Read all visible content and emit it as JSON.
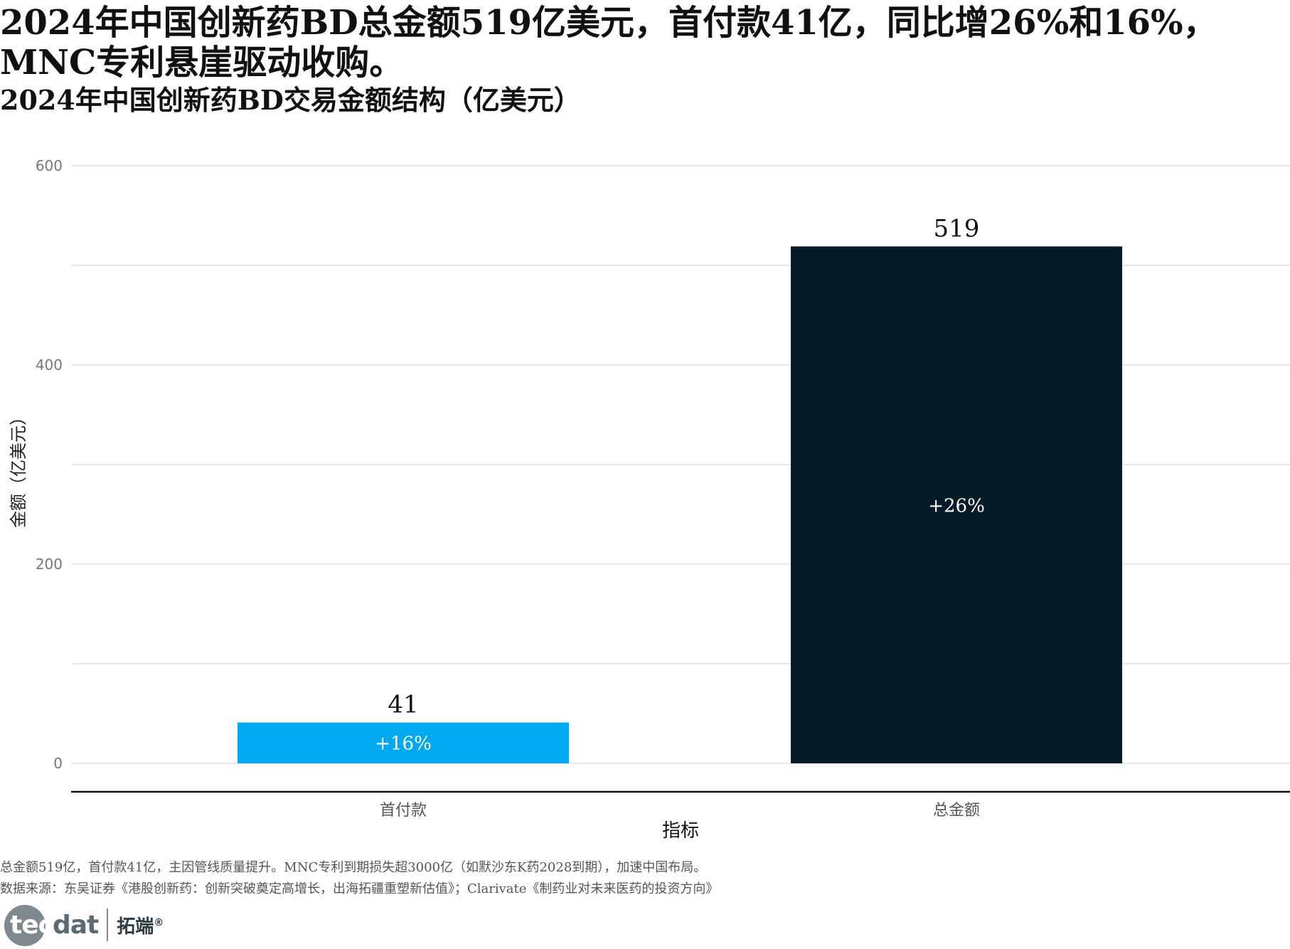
{
  "header": {
    "title": "2024年中国创新药BD总金额519亿美元，首付款41亿，同比增26%和16%，MNC专利悬崖驱动收购。",
    "subtitle": "2024年中国创新药BD交易金额结构（亿美元）"
  },
  "chart_data": {
    "type": "bar",
    "categories": [
      "首付款",
      "总金额"
    ],
    "values": [
      41,
      519
    ],
    "value_labels": [
      "41",
      "519"
    ],
    "growth_labels": [
      "+16%",
      "+26%"
    ],
    "colors": [
      "#00A9F0",
      "#061B28"
    ],
    "xlabel": "指标",
    "ylabel": "金额（亿美元）",
    "ylim": [
      0,
      600
    ],
    "yticks": [
      0,
      200,
      400,
      600
    ],
    "ytick_labels": [
      "0",
      "200",
      "400",
      "600"
    ],
    "minor_yticks": [
      100,
      300,
      500
    ],
    "grid": true,
    "legend": "none"
  },
  "footer": {
    "note": "总金额519亿，首付款41亿，主因管线质量提升。MNC专利到期损失超3000亿（如默沙东K药2028到期），加速中国布局。",
    "source": "数据来源：东吴证券《港股创新药：创新突破奠定高增长，出海拓疆重塑新估值》；Clarivate《制药业对未来医药的投资方向》"
  },
  "logo": {
    "tec": "tec",
    "dat": "dat",
    "cn": "拓端",
    "mark": "®"
  }
}
